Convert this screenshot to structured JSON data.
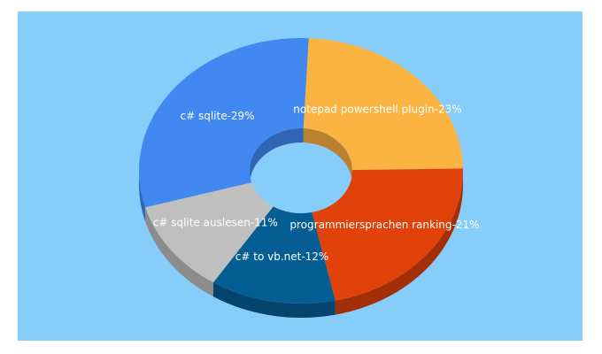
{
  "chart_data": {
    "type": "pie",
    "style": "3d-donut",
    "background_color": "#87CDFA",
    "slices": [
      {
        "label": "c# sqlite-29%",
        "value": 29,
        "color": "#4188F0",
        "side_color": "#2F65B3"
      },
      {
        "label": "notepad powershell plugin-23%",
        "value": 23,
        "color": "#FBB341",
        "side_color": "#B98130"
      },
      {
        "label": "programmiersprachen ranking-21%",
        "value": 21,
        "color": "#E0420A",
        "side_color": "#A32F07"
      },
      {
        "label": "c# to vb.net-12%",
        "value": 12,
        "color": "#045E93",
        "side_color": "#03456C"
      },
      {
        "label": "c# sqlite auslesen-11%",
        "value": 11,
        "color": "#BFBFBF",
        "side_color": "#8C8C8C"
      }
    ]
  }
}
